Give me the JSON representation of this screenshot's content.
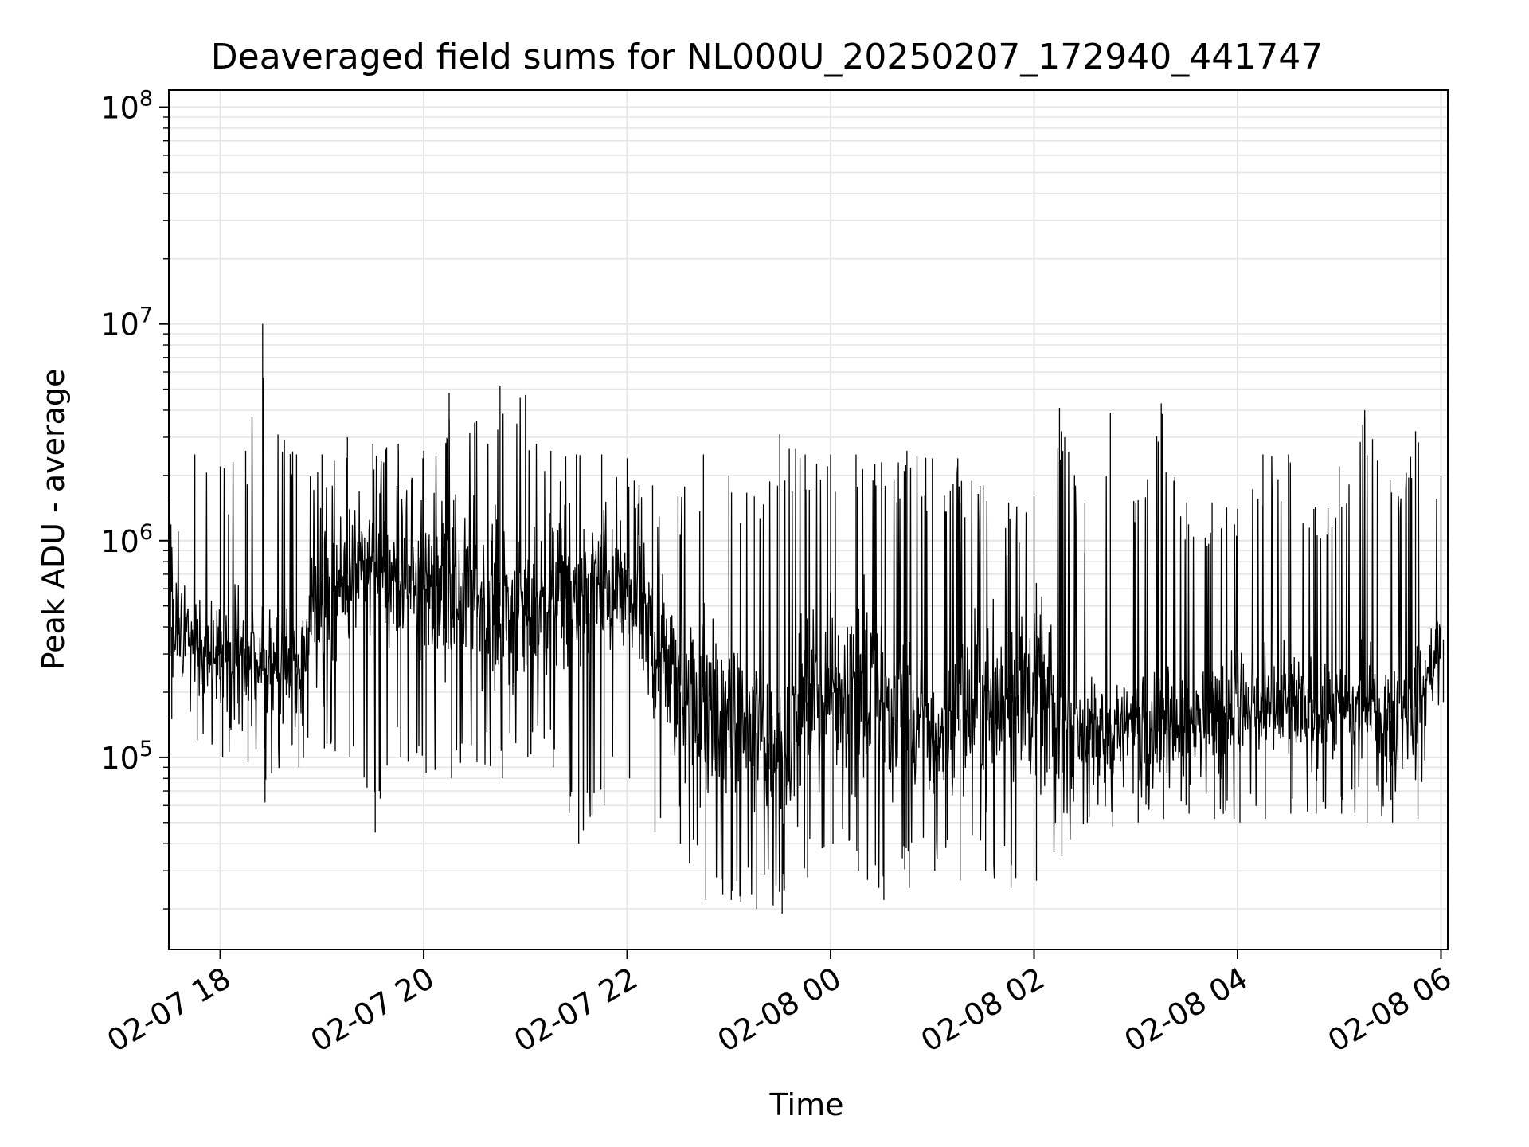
{
  "chart_data": {
    "type": "line",
    "title": "Deaveraged field sums for NL000U_20250207_172940_441747",
    "xlabel": "Time",
    "ylabel": "Peak ADU - average",
    "yscale": "log",
    "ylim": [
      13000,
      120000000
    ],
    "xlim": [
      "2025-02-07 17:29:40",
      "2025-02-08 06:04:00"
    ],
    "grid": true,
    "line_color": "#000000",
    "grid_color": "#e5e5e5",
    "x_ticks": [
      {
        "time": "2025-02-07 18:00",
        "label": "02-07 18"
      },
      {
        "time": "2025-02-07 20:00",
        "label": "02-07 20"
      },
      {
        "time": "2025-02-07 22:00",
        "label": "02-07 22"
      },
      {
        "time": "2025-02-08 00:00",
        "label": "02-08 00"
      },
      {
        "time": "2025-02-08 02:00",
        "label": "02-08 02"
      },
      {
        "time": "2025-02-08 04:00",
        "label": "02-08 04"
      },
      {
        "time": "2025-02-08 06:00",
        "label": "02-08 06"
      }
    ],
    "y_ticks": [
      {
        "value": 100000,
        "base": "10",
        "exp": "5"
      },
      {
        "value": 1000000,
        "base": "10",
        "exp": "6"
      },
      {
        "value": 10000000,
        "base": "10",
        "exp": "7"
      },
      {
        "value": 100000000,
        "base": "10",
        "exp": "8"
      }
    ],
    "x": [
      "2025-02-07 17:30",
      "2025-02-07 17:45",
      "2025-02-07 18:00",
      "2025-02-07 18:15",
      "2025-02-07 18:25",
      "2025-02-07 18:45",
      "2025-02-07 19:00",
      "2025-02-07 19:15",
      "2025-02-07 19:30",
      "2025-02-07 19:45",
      "2025-02-07 20:00",
      "2025-02-07 20:15",
      "2025-02-07 20:30",
      "2025-02-07 20:45",
      "2025-02-07 21:00",
      "2025-02-07 21:15",
      "2025-02-07 21:30",
      "2025-02-07 21:45",
      "2025-02-07 22:00",
      "2025-02-07 22:15",
      "2025-02-07 22:30",
      "2025-02-07 22:45",
      "2025-02-07 23:00",
      "2025-02-07 23:15",
      "2025-02-07 23:30",
      "2025-02-07 23:45",
      "2025-02-08 00:00",
      "2025-02-08 00:15",
      "2025-02-08 00:30",
      "2025-02-08 00:45",
      "2025-02-08 01:00",
      "2025-02-08 01:15",
      "2025-02-08 01:30",
      "2025-02-08 01:45",
      "2025-02-08 02:00",
      "2025-02-08 02:15",
      "2025-02-08 02:30",
      "2025-02-08 02:45",
      "2025-02-08 03:00",
      "2025-02-08 03:15",
      "2025-02-08 03:30",
      "2025-02-08 03:45",
      "2025-02-08 04:00",
      "2025-02-08 04:15",
      "2025-02-08 04:30",
      "2025-02-08 04:45",
      "2025-02-08 05:00",
      "2025-02-08 05:15",
      "2025-02-08 05:30",
      "2025-02-08 05:45",
      "2025-02-08 06:00"
    ],
    "y_median": [
      400000,
      350000,
      300000,
      280000,
      250000,
      260000,
      500000,
      700000,
      800000,
      650000,
      600000,
      700000,
      550000,
      500000,
      450000,
      600000,
      550000,
      650000,
      550000,
      350000,
      200000,
      180000,
      150000,
      130000,
      100000,
      180000,
      200000,
      250000,
      180000,
      150000,
      120000,
      150000,
      180000,
      200000,
      200000,
      150000,
      130000,
      130000,
      150000,
      150000,
      150000,
      160000,
      170000,
      160000,
      170000,
      160000,
      160000,
      170000,
      160000,
      170000,
      350000
    ],
    "y_max": [
      1500000,
      2500000,
      2200000,
      2600000,
      10000000,
      2500000,
      2500000,
      3000000,
      2800000,
      2800000,
      2600000,
      4800000,
      3500000,
      5200000,
      4700000,
      2600000,
      2500000,
      2500000,
      2400000,
      1800000,
      1600000,
      2500000,
      2000000,
      1600000,
      3100000,
      2500000,
      2500000,
      2500000,
      2300000,
      2600000,
      2400000,
      2400000,
      1800000,
      1500000,
      1600000,
      4100000,
      1500000,
      3900000,
      1500000,
      4300000,
      1500000,
      1500000,
      1400000,
      2500000,
      2500000,
      1400000,
      2200000,
      4000000,
      1900000,
      3200000,
      2000000
    ],
    "y_min": [
      150000,
      120000,
      100000,
      95000,
      62000,
      90000,
      110000,
      100000,
      45000,
      100000,
      85000,
      80000,
      95000,
      80000,
      100000,
      90000,
      40000,
      60000,
      80000,
      45000,
      40000,
      22000,
      22000,
      20000,
      19000,
      28000,
      40000,
      30000,
      22000,
      25000,
      30000,
      27000,
      30000,
      25000,
      27000,
      35000,
      50000,
      48000,
      50000,
      52000,
      55000,
      52000,
      50000,
      52000,
      55000,
      55000,
      55000,
      50000,
      50000,
      52000,
      180000
    ]
  }
}
